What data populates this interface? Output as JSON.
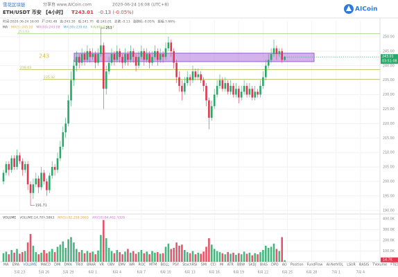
{
  "header": {
    "brand": "雪花区块链",
    "share": "分享自 www.AICoin.com",
    "time": "2020-06-24 16:08 (UTC+8)",
    "symbol": "ETH/USDT 币安 【4小时】",
    "price": "₮243.01",
    "change": "-0.13 (-0.05%)",
    "logo": "AICoin"
  },
  "info": [
    "时间:2020-06-24 16:00",
    "开:242.48",
    "高:243.30",
    "低:241.70",
    "收:243.01",
    "涨跌:-0.13",
    "涨跌幅:-0.05%",
    "振幅:0.66%"
  ],
  "ma_labels": [
    "MA",
    "MA(5):243.10",
    "MA(10):243.08",
    "MA(30):239.63",
    "MA(60):238.57"
  ],
  "volume_labels": [
    "VOLUME",
    "VOLUME:14,709.5863",
    "MA(5):82,259.2603",
    "MA(10):84,462.4320"
  ],
  "indicator_tabs": [
    "MA",
    "EMA",
    "VOLUME",
    "MACD",
    "DMI",
    "DMA",
    "TRIX",
    "BRAR",
    "VR",
    "OBV",
    "EMV",
    "WR",
    "ROC",
    "MTM",
    "BOLL",
    "PSY",
    "StochRSI",
    "SMI",
    "CCI",
    "MI",
    "ATR",
    "BBW",
    "SKDJ",
    "BIAS",
    "DPO",
    "AO",
    "Position",
    "FundFlow",
    "AI-NetVOL",
    "LSUR",
    "BASIS",
    "TVolume",
    "FTES",
    "TTM",
    "TTMU"
  ],
  "chart_data": {
    "type": "candlestick",
    "up_color": "#27a869",
    "down_color": "#e0364f",
    "date_labels": [
      "5月 23",
      "5月 26",
      "5月 29",
      "6月 1",
      "6月 4",
      "6月 7",
      "6月 10",
      "6月 13",
      "6月 16",
      "6月 19",
      "6月 22",
      "6月 25",
      "6月 28",
      "7月 1",
      "7月 4"
    ],
    "ylim": [
      189,
      255.5
    ],
    "yticks": [
      {
        "value": 190,
        "label": "190.00"
      },
      {
        "value": 195,
        "label": "195.00"
      },
      {
        "value": 200,
        "label": "200.00"
      },
      {
        "value": 205,
        "label": "205.00"
      },
      {
        "value": 210,
        "label": "210.00"
      },
      {
        "value": 215,
        "label": "215.00"
      },
      {
        "value": 220,
        "label": "220.00"
      },
      {
        "value": 225,
        "label": "225.00"
      },
      {
        "value": 230,
        "label": "230.00"
      },
      {
        "value": 235,
        "label": "235.00"
      },
      {
        "value": 240,
        "label": "240.00"
      },
      {
        "value": 245,
        "label": "245.00"
      },
      {
        "value": 250,
        "label": "250.00"
      }
    ],
    "grid": true,
    "high_label": 253.0,
    "low_label": 191.71,
    "levels": [
      {
        "value": 251.03,
        "color": "#9fd67a"
      },
      {
        "value": 238.63,
        "color": "#b9b24a"
      },
      {
        "value": 235.32,
        "color": "#b9b24a"
      }
    ],
    "zone": {
      "label": "243",
      "low": 241.4,
      "high": 244.3,
      "color": "#9b59d0"
    },
    "price_tag": {
      "price": 243.01,
      "countdown": "03:51:08"
    },
    "ohlc": [
      [
        200,
        204,
        199,
        203
      ],
      [
        203,
        207,
        202,
        206
      ],
      [
        206,
        207,
        202,
        204
      ],
      [
        204,
        209,
        203,
        208
      ],
      [
        208,
        209,
        204,
        205
      ],
      [
        205,
        211,
        204,
        209
      ],
      [
        209,
        210,
        206,
        207
      ],
      [
        207,
        208,
        202,
        204
      ],
      [
        204,
        207,
        203,
        206
      ],
      [
        206,
        207,
        197,
        199
      ],
      [
        199,
        200,
        191.71,
        196
      ],
      [
        196,
        201,
        194,
        199
      ],
      [
        199,
        203,
        198,
        201
      ],
      [
        201,
        202,
        196,
        198
      ],
      [
        198,
        205,
        197,
        203
      ],
      [
        203,
        204,
        199,
        200
      ],
      [
        200,
        201,
        195,
        197
      ],
      [
        197,
        203,
        196,
        202
      ],
      [
        202,
        207,
        201,
        205
      ],
      [
        205,
        206,
        202,
        204
      ],
      [
        204,
        210,
        203,
        208
      ],
      [
        208,
        214,
        207,
        212
      ],
      [
        212,
        219,
        211,
        217
      ],
      [
        217,
        222,
        215,
        220
      ],
      [
        220,
        230,
        219,
        228
      ],
      [
        228,
        238,
        226,
        235
      ],
      [
        235,
        242,
        233,
        240
      ],
      [
        240,
        245,
        238,
        243
      ],
      [
        243,
        244,
        239,
        241
      ],
      [
        241,
        246,
        240,
        244
      ],
      [
        244,
        245,
        240,
        242
      ],
      [
        242,
        247,
        241,
        245
      ],
      [
        245,
        246,
        241,
        243
      ],
      [
        243,
        246,
        242,
        244
      ],
      [
        244,
        245,
        239,
        241
      ],
      [
        241,
        246,
        240,
        244
      ],
      [
        244,
        253.0,
        243,
        247
      ],
      [
        247,
        248,
        225,
        232
      ],
      [
        232,
        240,
        230,
        238
      ],
      [
        238,
        243,
        237,
        241
      ],
      [
        241,
        246,
        240,
        244
      ],
      [
        244,
        245,
        240,
        242
      ],
      [
        242,
        247,
        241,
        245
      ],
      [
        245,
        246,
        241,
        243
      ],
      [
        243,
        244,
        239,
        241
      ],
      [
        241,
        246,
        240,
        244
      ],
      [
        244,
        245,
        240,
        242
      ],
      [
        242,
        247,
        241,
        245
      ],
      [
        245,
        246,
        241,
        243
      ],
      [
        243,
        244,
        238,
        240
      ],
      [
        240,
        245,
        239,
        243
      ],
      [
        243,
        247,
        242,
        245
      ],
      [
        245,
        246,
        240,
        242
      ],
      [
        242,
        246,
        241,
        244
      ],
      [
        244,
        245,
        239,
        241
      ],
      [
        241,
        245,
        240,
        243
      ],
      [
        243,
        247,
        242,
        245
      ],
      [
        245,
        246,
        240,
        242
      ],
      [
        242,
        246,
        241,
        244
      ],
      [
        244,
        245,
        241,
        243
      ],
      [
        243,
        248,
        242,
        246
      ],
      [
        246,
        250,
        245,
        248
      ],
      [
        248,
        249,
        243,
        245
      ],
      [
        245,
        246,
        239,
        241
      ],
      [
        241,
        242,
        234,
        236
      ],
      [
        236,
        238,
        231,
        233
      ],
      [
        233,
        235,
        228,
        231
      ],
      [
        231,
        236,
        230,
        234
      ],
      [
        234,
        238,
        233,
        236
      ],
      [
        236,
        237,
        233,
        235
      ],
      [
        235,
        240,
        234,
        238
      ],
      [
        238,
        239,
        235,
        236
      ],
      [
        236,
        239,
        235,
        237
      ],
      [
        237,
        238,
        234,
        235
      ],
      [
        235,
        236,
        231,
        233
      ],
      [
        233,
        234,
        226,
        228
      ],
      [
        228,
        229,
        218,
        222
      ],
      [
        222,
        228,
        221,
        226
      ],
      [
        226,
        232,
        225,
        230
      ],
      [
        230,
        235,
        229,
        233
      ],
      [
        233,
        237,
        232,
        235
      ],
      [
        235,
        236,
        231,
        232
      ],
      [
        232,
        236,
        231,
        234
      ],
      [
        234,
        235,
        230,
        231
      ],
      [
        231,
        235,
        230,
        233
      ],
      [
        233,
        234,
        229,
        230
      ],
      [
        230,
        234,
        229,
        232
      ],
      [
        232,
        233,
        227,
        229
      ],
      [
        229,
        233,
        228,
        231
      ],
      [
        231,
        235,
        230,
        233
      ],
      [
        233,
        234,
        229,
        230
      ],
      [
        230,
        234,
        229,
        232
      ],
      [
        232,
        233,
        228,
        229
      ],
      [
        229,
        233,
        228,
        231
      ],
      [
        231,
        232,
        229,
        230
      ],
      [
        230,
        235,
        229,
        233
      ],
      [
        233,
        238,
        232,
        236
      ],
      [
        236,
        242,
        235,
        240
      ],
      [
        240,
        244,
        239,
        242
      ],
      [
        242,
        246,
        241,
        244
      ],
      [
        244,
        249,
        243,
        246
      ],
      [
        246,
        247,
        242,
        244
      ],
      [
        244,
        246,
        243,
        245
      ],
      [
        245,
        246,
        241,
        242
      ],
      [
        242,
        243.3,
        241.7,
        243.01
      ]
    ],
    "volume": [
      80000,
      95000,
      70000,
      110000,
      85000,
      120000,
      75000,
      90000,
      100000,
      180000,
      260000,
      150000,
      90000,
      70000,
      85000,
      110000,
      80000,
      95000,
      120000,
      90000,
      140000,
      160000,
      190000,
      130000,
      210000,
      230000,
      180000,
      120000,
      90000,
      110000,
      80000,
      100000,
      85000,
      95000,
      70000,
      105000,
      250000,
      390000,
      220000,
      130000,
      100000,
      80000,
      110000,
      90000,
      70000,
      95000,
      120000,
      85000,
      100000,
      75000,
      90000,
      110000,
      80000,
      95000,
      70000,
      100000,
      85000,
      90000,
      75000,
      80000,
      140000,
      170000,
      120000,
      130000,
      180000,
      150000,
      160000,
      110000,
      90000,
      80000,
      100000,
      70000,
      85000,
      75000,
      95000,
      140000,
      220000,
      160000,
      120000,
      100000,
      90000,
      80000,
      70000,
      90000,
      75000,
      85000,
      65000,
      80000,
      70000,
      95000,
      75000,
      85000,
      60000,
      80000,
      70000,
      90000,
      110000,
      150000,
      130000,
      140000,
      170000,
      120000,
      100000,
      230000,
      14709.5863
    ],
    "vlim": [
      0,
      440000
    ],
    "vticks": [
      {
        "value": 100000,
        "label": "100.0K"
      },
      {
        "value": 200000,
        "label": "200.0K"
      },
      {
        "value": 300000,
        "label": "300.0K"
      },
      {
        "value": 400000,
        "label": "400.0K"
      }
    ],
    "volume_tag": "14.7K"
  }
}
